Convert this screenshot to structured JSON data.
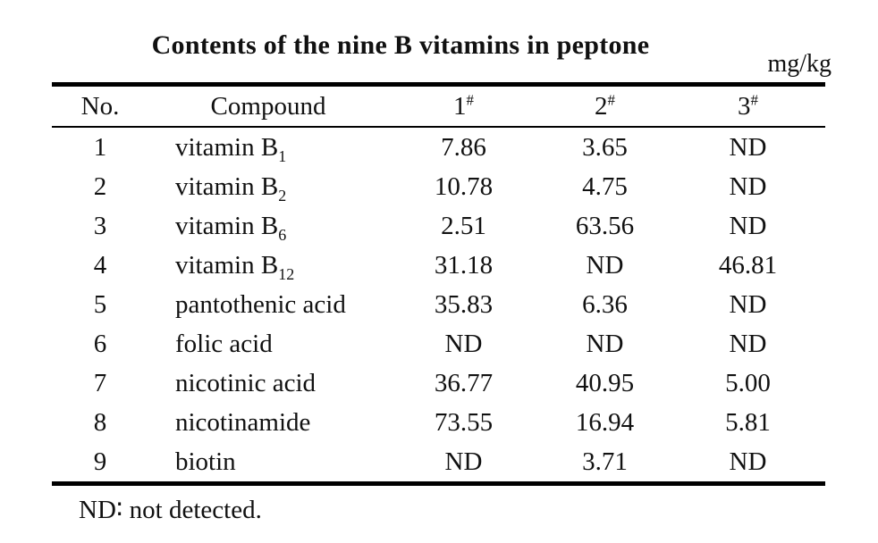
{
  "colors": {
    "background": "#ffffff",
    "text": "#111111",
    "rule": "#000000"
  },
  "title": "Contents of the nine B vitamins in peptone",
  "unit": "mg/kg",
  "footnote": "ND∶ not detected.",
  "table": {
    "headers": {
      "no": "No.",
      "compound": "Compound",
      "s1": {
        "base": "1",
        "sup": "#"
      },
      "s2": {
        "base": "2",
        "sup": "#"
      },
      "s3": {
        "base": "3",
        "sup": "#"
      }
    },
    "rows": [
      {
        "no": "1",
        "compound": "vitamin B",
        "sub": "1",
        "v1": "7.86",
        "v2": "3.65",
        "v3": "ND"
      },
      {
        "no": "2",
        "compound": "vitamin B",
        "sub": "2",
        "v1": "10.78",
        "v2": "4.75",
        "v3": "ND"
      },
      {
        "no": "3",
        "compound": "vitamin B",
        "sub": "6",
        "v1": "2.51",
        "v2": "63.56",
        "v3": "ND"
      },
      {
        "no": "4",
        "compound": "vitamin B",
        "sub": "12",
        "v1": "31.18",
        "v2": "ND",
        "v3": "46.81"
      },
      {
        "no": "5",
        "compound": "pantothenic acid",
        "sub": "",
        "v1": "35.83",
        "v2": "6.36",
        "v3": "ND"
      },
      {
        "no": "6",
        "compound": "folic acid",
        "sub": "",
        "v1": "ND",
        "v2": "ND",
        "v3": "ND"
      },
      {
        "no": "7",
        "compound": "nicotinic acid",
        "sub": "",
        "v1": "36.77",
        "v2": "40.95",
        "v3": "5.00"
      },
      {
        "no": "8",
        "compound": "nicotinamide",
        "sub": "",
        "v1": "73.55",
        "v2": "16.94",
        "v3": "5.81"
      },
      {
        "no": "9",
        "compound": "biotin",
        "sub": "",
        "v1": "ND",
        "v2": "3.71",
        "v3": "ND"
      }
    ]
  }
}
